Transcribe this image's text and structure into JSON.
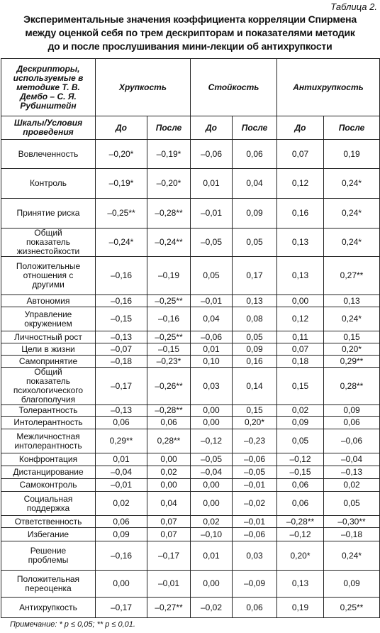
{
  "caption": "Таблица 2.",
  "title": [
    "Экспериментальные значения коэффициента корреляции Спирмена",
    "между оценкой себя по трем дескрипторам и показателями методик",
    "до и после прослушивания мини-лекции об антихрупкости"
  ],
  "table": {
    "corner_top": "Дескрипторы, используемые в методике Т. В. Дембо – С. Я. Рубинштейн",
    "corner_bottom": "Шкалы/Условия проведения",
    "groups": [
      "Хрупкость",
      "Стойкость",
      "Антихрупкость"
    ],
    "subheaders": [
      "До",
      "После",
      "До",
      "После",
      "До",
      "После"
    ],
    "rows": [
      [
        "Вовлеченность",
        "–0,20*",
        "–0,19*",
        "–0,06",
        "0,06",
        "0,07",
        "0,19"
      ],
      [
        "Контроль",
        "–0,19*",
        "–0,20*",
        "0,01",
        "0,04",
        "0,12",
        "0,24*"
      ],
      [
        "Принятие риска",
        "–0,25**",
        "–0,28**",
        "–0,01",
        "0,09",
        "0,16",
        "0,24*"
      ],
      [
        "Общий показатель жизнестойкости",
        "–0,24*",
        "–0,24**",
        "–0,05",
        "0,05",
        "0,13",
        "0,24*"
      ],
      [
        "Положительные отношения с другими",
        "–0,16",
        "–0,19",
        "0,05",
        "0,17",
        "0,13",
        "0,27**"
      ],
      [
        "Автономия",
        "–0,16",
        "–0,25**",
        "–0,01",
        "0,13",
        "0,00",
        "0,13"
      ],
      [
        "Управление окружением",
        "–0,15",
        "–0,16",
        "0,04",
        "0,08",
        "0,12",
        "0,24*"
      ],
      [
        "Личностный рост",
        "–0,13",
        "–0,25**",
        "–0,06",
        "0,05",
        "0,11",
        "0,15"
      ],
      [
        "Цели в жизни",
        "–0,07",
        "–0,15",
        "0,01",
        "0,09",
        "0,07",
        "0,20*"
      ],
      [
        "Самопринятие",
        "–0,18",
        "–0,23*",
        "0,10",
        "0,16",
        "0,18",
        "0,29**"
      ],
      [
        "Общий показатель психологического благополучия",
        "–0,17",
        "–0,26**",
        "0,03",
        "0,14",
        "0,15",
        "0,28**"
      ],
      [
        "Толерантность",
        "–0,13",
        "–0,28**",
        "0,00",
        "0,15",
        "0,02",
        "0,09"
      ],
      [
        "Интолерантность",
        "0,06",
        "0,06",
        "0,00",
        "0,20*",
        "0,09",
        "0,06"
      ],
      [
        "Межличностная интолерантность",
        "0,29**",
        "0,28**",
        "–0,12",
        "–0,23",
        "0,05",
        "–0,06"
      ],
      [
        "Конфронтация",
        "0,01",
        "0,00",
        "–0,05",
        "–0,06",
        "–0,12",
        "–0,04"
      ],
      [
        "Дистанцирование",
        "–0,04",
        "0,02",
        "–0,04",
        "–0,05",
        "–0,15",
        "–0,13"
      ],
      [
        "Самоконтроль",
        "–0,01",
        "0,00",
        "0,00",
        "–0,01",
        "0,06",
        "0,02"
      ],
      [
        "Социальная поддержка",
        "0,02",
        "0,04",
        "0,00",
        "–0,02",
        "0,06",
        "0,05"
      ],
      [
        "Ответственность",
        "0,06",
        "0,07",
        "0,02",
        "–0,01",
        "–0,28**",
        "–0,30**"
      ],
      [
        "Избегание",
        "0,09",
        "0,07",
        "–0,10",
        "–0,06",
        "–0,12",
        "–0,18"
      ],
      [
        "Решение проблемы",
        "–0,16",
        "–0,17",
        "0,01",
        "0,03",
        "0,20*",
        "0,24*"
      ],
      [
        "Положительная переоценка",
        "0,00",
        "–0,01",
        "0,00",
        "–0,09",
        "0,13",
        "0,09"
      ],
      [
        "Антихрупкость",
        "–0,17",
        "–0,27**",
        "–0,02",
        "0,06",
        "0,19",
        "0,25**"
      ]
    ]
  },
  "note": "Примечание: * p ≤ 0,05; ** p ≤ 0,01."
}
